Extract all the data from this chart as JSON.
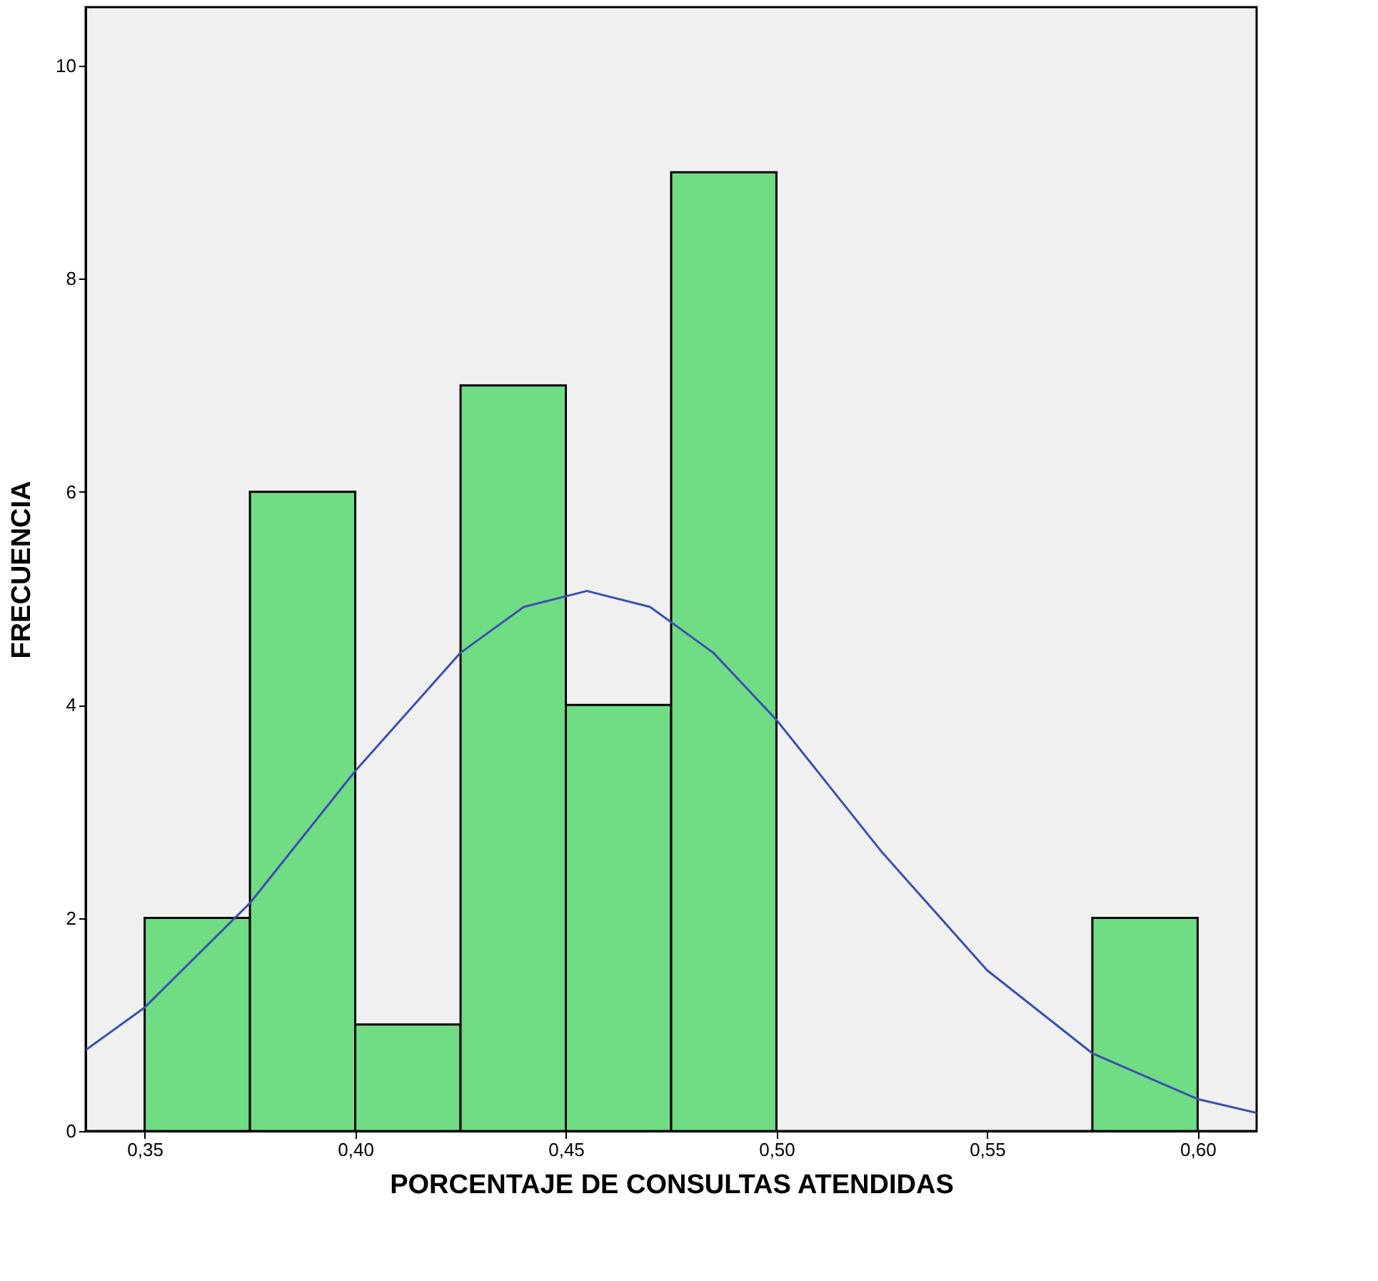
{
  "chart_data": {
    "type": "histogram",
    "xlabel": "PORCENTAJE DE CONSULTAS ATENDIDAS",
    "ylabel": "FRECUENCIA",
    "bins": [
      0.35,
      0.375,
      0.4,
      0.425,
      0.45,
      0.475,
      0.5,
      0.525,
      0.55,
      0.575,
      0.6
    ],
    "values": [
      2,
      6,
      1,
      7,
      4,
      9,
      0,
      0,
      0,
      2
    ],
    "color": "#70dc84",
    "series": [
      {
        "type": "line",
        "color": "#3b4fb0",
        "x": [
          0.336,
          0.35,
          0.375,
          0.4,
          0.425,
          0.44,
          0.455,
          0.47,
          0.485,
          0.5,
          0.525,
          0.55,
          0.575,
          0.6,
          0.614
        ],
        "values": [
          0.76,
          1.16,
          2.14,
          3.38,
          4.49,
          4.92,
          5.07,
          4.92,
          4.49,
          3.86,
          2.62,
          1.51,
          0.73,
          0.3,
          0.17
        ]
      }
    ],
    "xlim": [
      0.336,
      0.614
    ],
    "ylim": [
      0,
      10.55
    ],
    "xticks": [
      {
        "value": 0.35,
        "label": "0,35"
      },
      {
        "value": 0.4,
        "label": "0,40"
      },
      {
        "value": 0.45,
        "label": "0,45"
      },
      {
        "value": 0.5,
        "label": "0,50"
      },
      {
        "value": 0.55,
        "label": "0,55"
      },
      {
        "value": 0.6,
        "label": "0,60"
      }
    ],
    "yticks": [
      0,
      2,
      4,
      6,
      8,
      10
    ],
    "grid": false
  }
}
